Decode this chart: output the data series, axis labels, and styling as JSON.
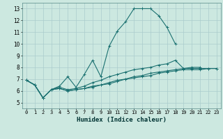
{
  "title": "",
  "xlabel": "Humidex (Indice chaleur)",
  "ylabel": "",
  "xlim": [
    -0.5,
    23.5
  ],
  "ylim": [
    4.5,
    13.5
  ],
  "yticks": [
    5,
    6,
    7,
    8,
    9,
    10,
    11,
    12,
    13
  ],
  "xticks": [
    0,
    1,
    2,
    3,
    4,
    5,
    6,
    7,
    8,
    9,
    10,
    11,
    12,
    13,
    14,
    15,
    16,
    17,
    18,
    19,
    20,
    21,
    22,
    23
  ],
  "background_color": "#cce8e0",
  "grid_color": "#aacccc",
  "line_color": "#1a7070",
  "series": [
    {
      "x": [
        0,
        1,
        2,
        3,
        4,
        5,
        6,
        7,
        8,
        9,
        10,
        11,
        12,
        13,
        14,
        15,
        16,
        17,
        18
      ],
      "y": [
        6.9,
        6.5,
        5.4,
        6.1,
        6.4,
        7.2,
        6.3,
        7.4,
        8.6,
        7.2,
        9.8,
        11.1,
        11.9,
        13.0,
        13.0,
        13.0,
        12.4,
        11.4,
        10.0
      ]
    },
    {
      "x": [
        0,
        1,
        2,
        3,
        4,
        5,
        6,
        7,
        8,
        9,
        10,
        11,
        12,
        13,
        14,
        15,
        16,
        17,
        18,
        19,
        20,
        21
      ],
      "y": [
        6.9,
        6.5,
        5.4,
        6.1,
        6.3,
        6.1,
        6.2,
        6.4,
        6.7,
        6.9,
        7.2,
        7.4,
        7.6,
        7.8,
        7.9,
        8.0,
        8.2,
        8.3,
        8.6,
        7.9,
        8.0,
        8.0
      ]
    },
    {
      "x": [
        0,
        1,
        2,
        3,
        4,
        5,
        6,
        7,
        8,
        9,
        10,
        11,
        12,
        13,
        14,
        15,
        16,
        17,
        18,
        19,
        20,
        21,
        22,
        23
      ],
      "y": [
        6.9,
        6.5,
        5.4,
        6.1,
        6.2,
        6.0,
        6.1,
        6.2,
        6.4,
        6.5,
        6.7,
        6.9,
        7.0,
        7.2,
        7.3,
        7.5,
        7.6,
        7.7,
        7.8,
        7.9,
        7.9,
        7.9,
        7.9,
        7.9
      ]
    },
    {
      "x": [
        0,
        1,
        2,
        3,
        4,
        5,
        6,
        7,
        8,
        9,
        10,
        11,
        12,
        13,
        14,
        15,
        16,
        17,
        18,
        19,
        20,
        21,
        22,
        23
      ],
      "y": [
        6.9,
        6.5,
        5.4,
        6.1,
        6.2,
        6.0,
        6.1,
        6.2,
        6.3,
        6.5,
        6.6,
        6.8,
        7.0,
        7.1,
        7.2,
        7.3,
        7.5,
        7.6,
        7.7,
        7.8,
        7.8,
        7.8,
        7.9,
        7.9
      ]
    }
  ]
}
